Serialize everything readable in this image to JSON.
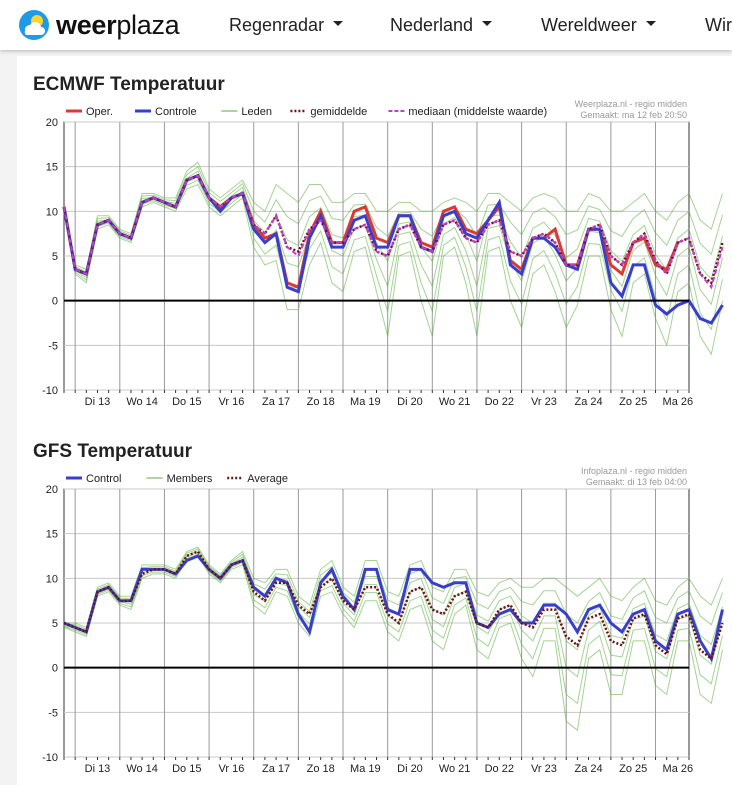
{
  "brand": {
    "name_bold": "weer",
    "name_rest": "plaza",
    "icon": "sun-cloud-logo-icon"
  },
  "nav": [
    {
      "label": "Regenradar",
      "icon": "caret-down-icon"
    },
    {
      "label": "Nederland",
      "icon": "caret-down-icon"
    },
    {
      "label": "Wereldweer",
      "icon": "caret-down-icon"
    },
    {
      "label": "Wir"
    }
  ],
  "colors": {
    "oper": "#d83a34",
    "control": "#3a3fc9",
    "members": "#5aaf3a",
    "average": "#6b1414",
    "median": "#c03fcc",
    "zero": "#000000",
    "grid": "#c8c8c8"
  },
  "chart_data": [
    {
      "type": "line",
      "title": "ECMWF Temperatuur",
      "source": "Weerplaza.nl - regio midden",
      "made": "Gemaakt: ma 12 feb 20:50",
      "ylim": [
        -10,
        20
      ],
      "yticks": [
        "20",
        "15",
        "10",
        "5",
        "0",
        "-5",
        "-10"
      ],
      "xlim": [
        0,
        56
      ],
      "day_labels": [
        "Di 13",
        "Wo 14",
        "Do 15",
        "Vr 16",
        "Za 17",
        "Zo 18",
        "Ma 19",
        "Di 20",
        "Wo 21",
        "Do 22",
        "Vr 23",
        "Za 24",
        "Zo 25",
        "Ma 26"
      ],
      "x_step": "6h",
      "legend": [
        {
          "label": "Oper.",
          "style": "oper"
        },
        {
          "label": "Controle",
          "style": "control"
        },
        {
          "label": "Leden",
          "style": "members"
        },
        {
          "label": "gemiddelde",
          "style": "average"
        },
        {
          "label": "mediaan (middelste waarde)",
          "style": "median"
        }
      ],
      "series": [
        {
          "name": "Oper.",
          "style": "oper",
          "values": [
            10.5,
            3.5,
            3,
            8.5,
            9,
            7.5,
            7,
            11,
            11.5,
            11,
            10.5,
            13.5,
            14,
            11.5,
            10.5,
            11.5,
            12,
            8.5,
            7,
            7.5,
            2,
            1.5,
            7.5,
            10,
            6.5,
            6.5,
            10,
            10.5,
            7,
            6.5,
            9.5,
            9.5,
            6.5,
            6,
            10,
            10.5,
            8,
            7.5,
            9,
            10.5,
            4.5,
            3.5,
            7,
            7,
            8,
            4,
            4,
            8,
            8,
            4,
            3,
            6.5,
            7,
            4,
            3.5,
            6.5,
            null
          ]
        },
        {
          "name": "Controle",
          "style": "control",
          "values": [
            10.5,
            3.5,
            3,
            8.5,
            9,
            7.5,
            7,
            11,
            11.5,
            11,
            10.5,
            13.5,
            14,
            11.5,
            10,
            11.5,
            12,
            8,
            6.5,
            7.5,
            1.5,
            1,
            7,
            9.5,
            6,
            6,
            9,
            9.5,
            6,
            6,
            9.5,
            9.5,
            6,
            5.5,
            9.5,
            10,
            7.5,
            7,
            9,
            11,
            4,
            3,
            7,
            7,
            6,
            4,
            3.5,
            8,
            8,
            2,
            0.5,
            4,
            4,
            -0.5,
            -1.5,
            -0.5,
            0,
            -2,
            -2.5,
            -0.5
          ]
        },
        {
          "name": "gemiddelde",
          "style": "average",
          "values": [
            10.5,
            3.5,
            3,
            8.5,
            9,
            7.5,
            7,
            11,
            11.5,
            11,
            10.5,
            13.5,
            14,
            11.5,
            10.5,
            11.5,
            12,
            8.5,
            7.5,
            9.5,
            6,
            5.5,
            8,
            9,
            6.5,
            6.5,
            8,
            8.5,
            5.5,
            5,
            8,
            8.5,
            6,
            5.5,
            8.5,
            9,
            7,
            6.5,
            8.5,
            9,
            5.5,
            5,
            7,
            7.5,
            6.5,
            4,
            4,
            8,
            8.5,
            5,
            4,
            6.5,
            7.5,
            4.5,
            3,
            6.5,
            7,
            3,
            2,
            6.5
          ]
        },
        {
          "name": "mediaan (middelste waarde)",
          "style": "median",
          "values": [
            10.5,
            3.5,
            3,
            8.5,
            9,
            7.5,
            7,
            11,
            11.5,
            11,
            10.5,
            13.5,
            14,
            11.5,
            10.5,
            11.5,
            12,
            8.5,
            7.5,
            9.5,
            6,
            5,
            8,
            9,
            6.5,
            6.5,
            8,
            8.5,
            5.5,
            5,
            8,
            8.5,
            6,
            5.5,
            8.5,
            9,
            7,
            6.5,
            8.5,
            9,
            5.5,
            5,
            7,
            7.5,
            6.5,
            4,
            4,
            8,
            8.5,
            5,
            4,
            6.5,
            7.5,
            4.5,
            3,
            6.5,
            7,
            3,
            1.5,
            6
          ]
        }
      ],
      "members_spread": {
        "low": [
          10,
          3,
          2,
          8,
          8.5,
          7,
          6.5,
          10.5,
          11,
          10.5,
          10,
          12.5,
          13,
          10.5,
          9.5,
          10.5,
          11.5,
          6,
          4,
          4.5,
          -1,
          -1,
          4,
          6.5,
          2,
          1,
          5.5,
          6,
          1,
          -4,
          5,
          5.5,
          0,
          -4,
          5,
          6,
          2,
          -4,
          5.5,
          6,
          0,
          -3,
          3,
          4,
          1,
          -3,
          -0.5,
          5,
          5,
          -1,
          -4,
          2,
          3,
          -2,
          -5,
          1,
          2,
          -4,
          -6,
          0
        ],
        "high": [
          10.5,
          4,
          3.5,
          9.5,
          9.5,
          8,
          7.5,
          12,
          12,
          11.5,
          11.5,
          14.5,
          15.5,
          12.5,
          11.5,
          12.5,
          13.5,
          11,
          10,
          13,
          12,
          11,
          13,
          13,
          11,
          11,
          12,
          12,
          10,
          10,
          11,
          11,
          10,
          10,
          11,
          11.5,
          11,
          10,
          12,
          12,
          11,
          10,
          11.5,
          12,
          11.5,
          10,
          10,
          12,
          11.5,
          10,
          10,
          11,
          12,
          10,
          9,
          11,
          12,
          9,
          8,
          12
        ]
      }
    },
    {
      "type": "line",
      "title": "GFS Temperatuur",
      "source": "Infoplaza.nl - regio midden",
      "made": "Gemaakt: di 13 feb 04:00",
      "ylim": [
        -10,
        20
      ],
      "yticks": [
        "20",
        "15",
        "10",
        "5",
        "0",
        "-5",
        "-10"
      ],
      "xlim": [
        0,
        56
      ],
      "day_labels": [
        "Di 13",
        "Wo 14",
        "Do 15",
        "Vr 16",
        "Za 17",
        "Zo 18",
        "Ma 19",
        "Di 20",
        "Wo 21",
        "Do 22",
        "Vr 23",
        "Za 24",
        "Zo 25",
        "Ma 26"
      ],
      "x_step": "6h",
      "legend": [
        {
          "label": "Control",
          "style": "control"
        },
        {
          "label": "Members",
          "style": "members"
        },
        {
          "label": "Average",
          "style": "average"
        }
      ],
      "series": [
        {
          "name": "Control",
          "style": "control",
          "values": [
            5,
            4.5,
            4,
            8.5,
            9,
            7.5,
            7.5,
            11,
            11,
            11,
            10.5,
            12,
            12.5,
            11,
            10,
            11.5,
            12,
            9,
            8,
            10,
            9.5,
            6,
            4,
            9.5,
            11,
            8,
            6.5,
            11,
            11,
            6.5,
            6,
            11,
            11,
            9.5,
            9,
            9.5,
            9.5,
            5,
            4.5,
            6,
            6.5,
            5,
            5,
            7,
            7,
            6,
            4,
            6.5,
            7,
            5,
            4,
            6,
            6.5,
            3,
            2,
            6,
            6.5,
            3,
            1,
            6.5
          ]
        },
        {
          "name": "Average",
          "style": "average",
          "values": [
            5,
            4.5,
            4,
            8.5,
            9,
            7.5,
            7.5,
            10.5,
            11,
            11,
            10.5,
            12.5,
            13,
            11,
            10,
            11.5,
            12,
            8.5,
            7.5,
            9.5,
            9.5,
            7,
            6,
            9,
            10,
            7.5,
            6.5,
            9,
            9,
            6,
            5,
            8.5,
            9,
            6.5,
            6,
            8,
            8.5,
            5,
            4.5,
            6.5,
            7,
            5,
            4.5,
            6.5,
            6.5,
            3.5,
            2.5,
            5.5,
            6,
            3,
            2.5,
            5.5,
            6,
            2.5,
            1.5,
            5.5,
            6,
            2,
            1,
            5
          ]
        }
      ],
      "members_spread": {
        "low": [
          4.5,
          4,
          3.5,
          8,
          8.5,
          7,
          6.5,
          10,
          10.5,
          10.5,
          10,
          12,
          12.5,
          10.5,
          9.5,
          11,
          11.5,
          7,
          6,
          8.5,
          8,
          5,
          3.5,
          8,
          8.5,
          6,
          4.5,
          7.5,
          7.5,
          4,
          3,
          6.5,
          7,
          3,
          2,
          6,
          7,
          2,
          1,
          4.5,
          5,
          1,
          -1,
          3,
          3,
          -6,
          -7,
          1,
          2,
          -3,
          -3,
          3,
          3,
          -2,
          -3,
          3,
          3,
          -3,
          -4,
          2
        ],
        "high": [
          5,
          5,
          4.5,
          9,
          9.5,
          8,
          8,
          11.5,
          11.5,
          11.5,
          11,
          13,
          13.5,
          11.5,
          10.5,
          12,
          13,
          10,
          9.5,
          11,
          11,
          8,
          7,
          11,
          12,
          9,
          8,
          12,
          12,
          8.5,
          8,
          11.5,
          12,
          9,
          8.5,
          11,
          11,
          8.5,
          8,
          9.5,
          10,
          9,
          9,
          10,
          10,
          9,
          8,
          9,
          10,
          8,
          7.5,
          9,
          10,
          7.5,
          7,
          9,
          10,
          8,
          7,
          10
        ]
      }
    }
  ]
}
